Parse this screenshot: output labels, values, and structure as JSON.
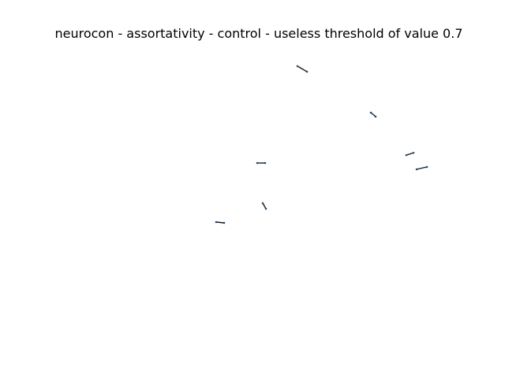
{
  "title": "neurocon - assortativity - control - useless threshold of value 0.7",
  "colors": {
    "background": "#ffffff",
    "edge": "#000000",
    "node": "#1f4e79"
  }
}
